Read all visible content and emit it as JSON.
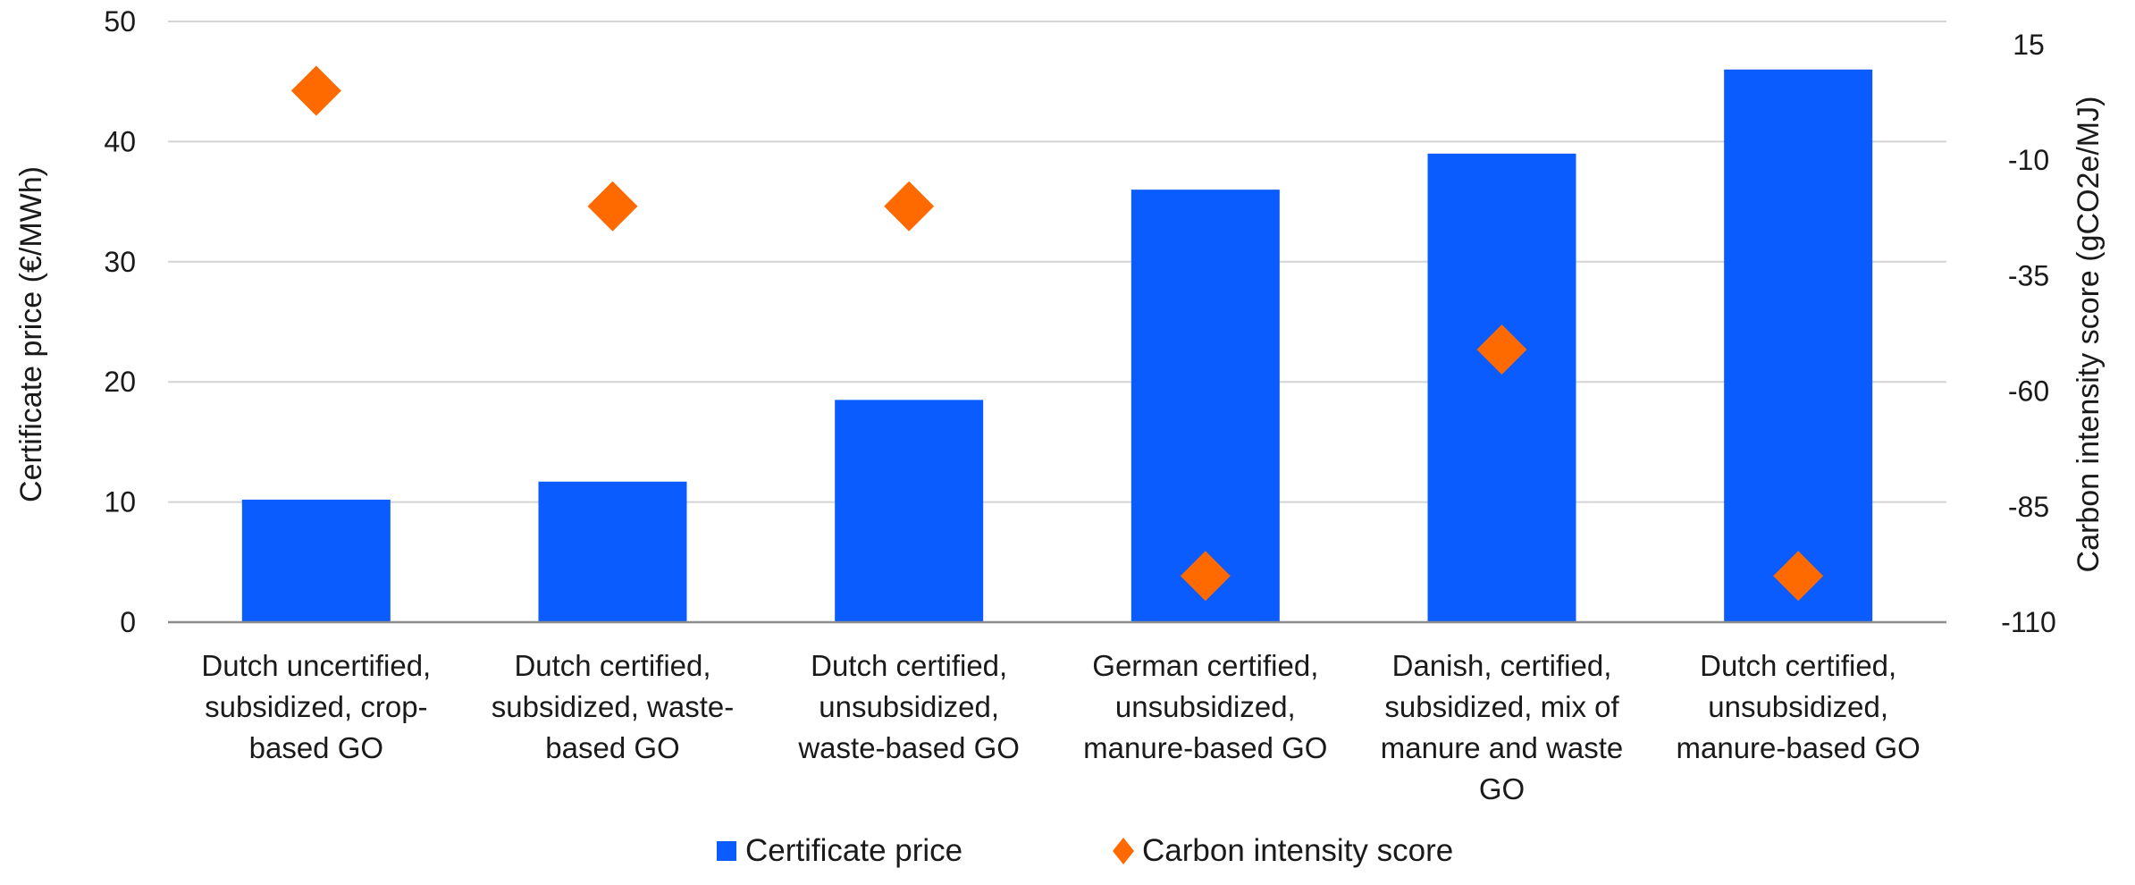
{
  "chart_data": {
    "type": "bar",
    "categories": [
      [
        "Dutch uncertified,",
        "subsidized, crop-",
        "based GO"
      ],
      [
        "Dutch certified,",
        "subsidized, waste-",
        "based GO"
      ],
      [
        "Dutch certified,",
        "unsubsidized,",
        "waste-based GO"
      ],
      [
        "German certified,",
        "unsubsidized,",
        "manure-based GO"
      ],
      [
        "Danish, certified,",
        "subsidized, mix of",
        "manure and waste",
        "GO"
      ],
      [
        "Dutch certified,",
        "unsubsidized,",
        "manure-based GO"
      ]
    ],
    "series": [
      {
        "name": "Certificate price",
        "type": "bar",
        "axis": "left",
        "color": "#0a5cff",
        "values": [
          10.2,
          11.7,
          18.5,
          36,
          39,
          46
        ]
      },
      {
        "name": "Carbon intensity score",
        "type": "scatter",
        "marker": "diamond",
        "axis": "right",
        "color": "#ff6a00",
        "values": [
          5,
          -20,
          -20,
          -100,
          -51,
          -100
        ]
      }
    ],
    "ylabel": "Certificate price (€/MWh)",
    "y2label": "Carbon intensity score (gCO2e/MJ)",
    "ylim": [
      0,
      50
    ],
    "yticks": [
      "0",
      "10",
      "20",
      "30",
      "40",
      "50"
    ],
    "y2lim": [
      -110,
      20
    ],
    "y2ticks": [
      "-110",
      "-85",
      "-60",
      "-35",
      "-10",
      "15"
    ],
    "grid": true,
    "legend": "bottom-center"
  }
}
